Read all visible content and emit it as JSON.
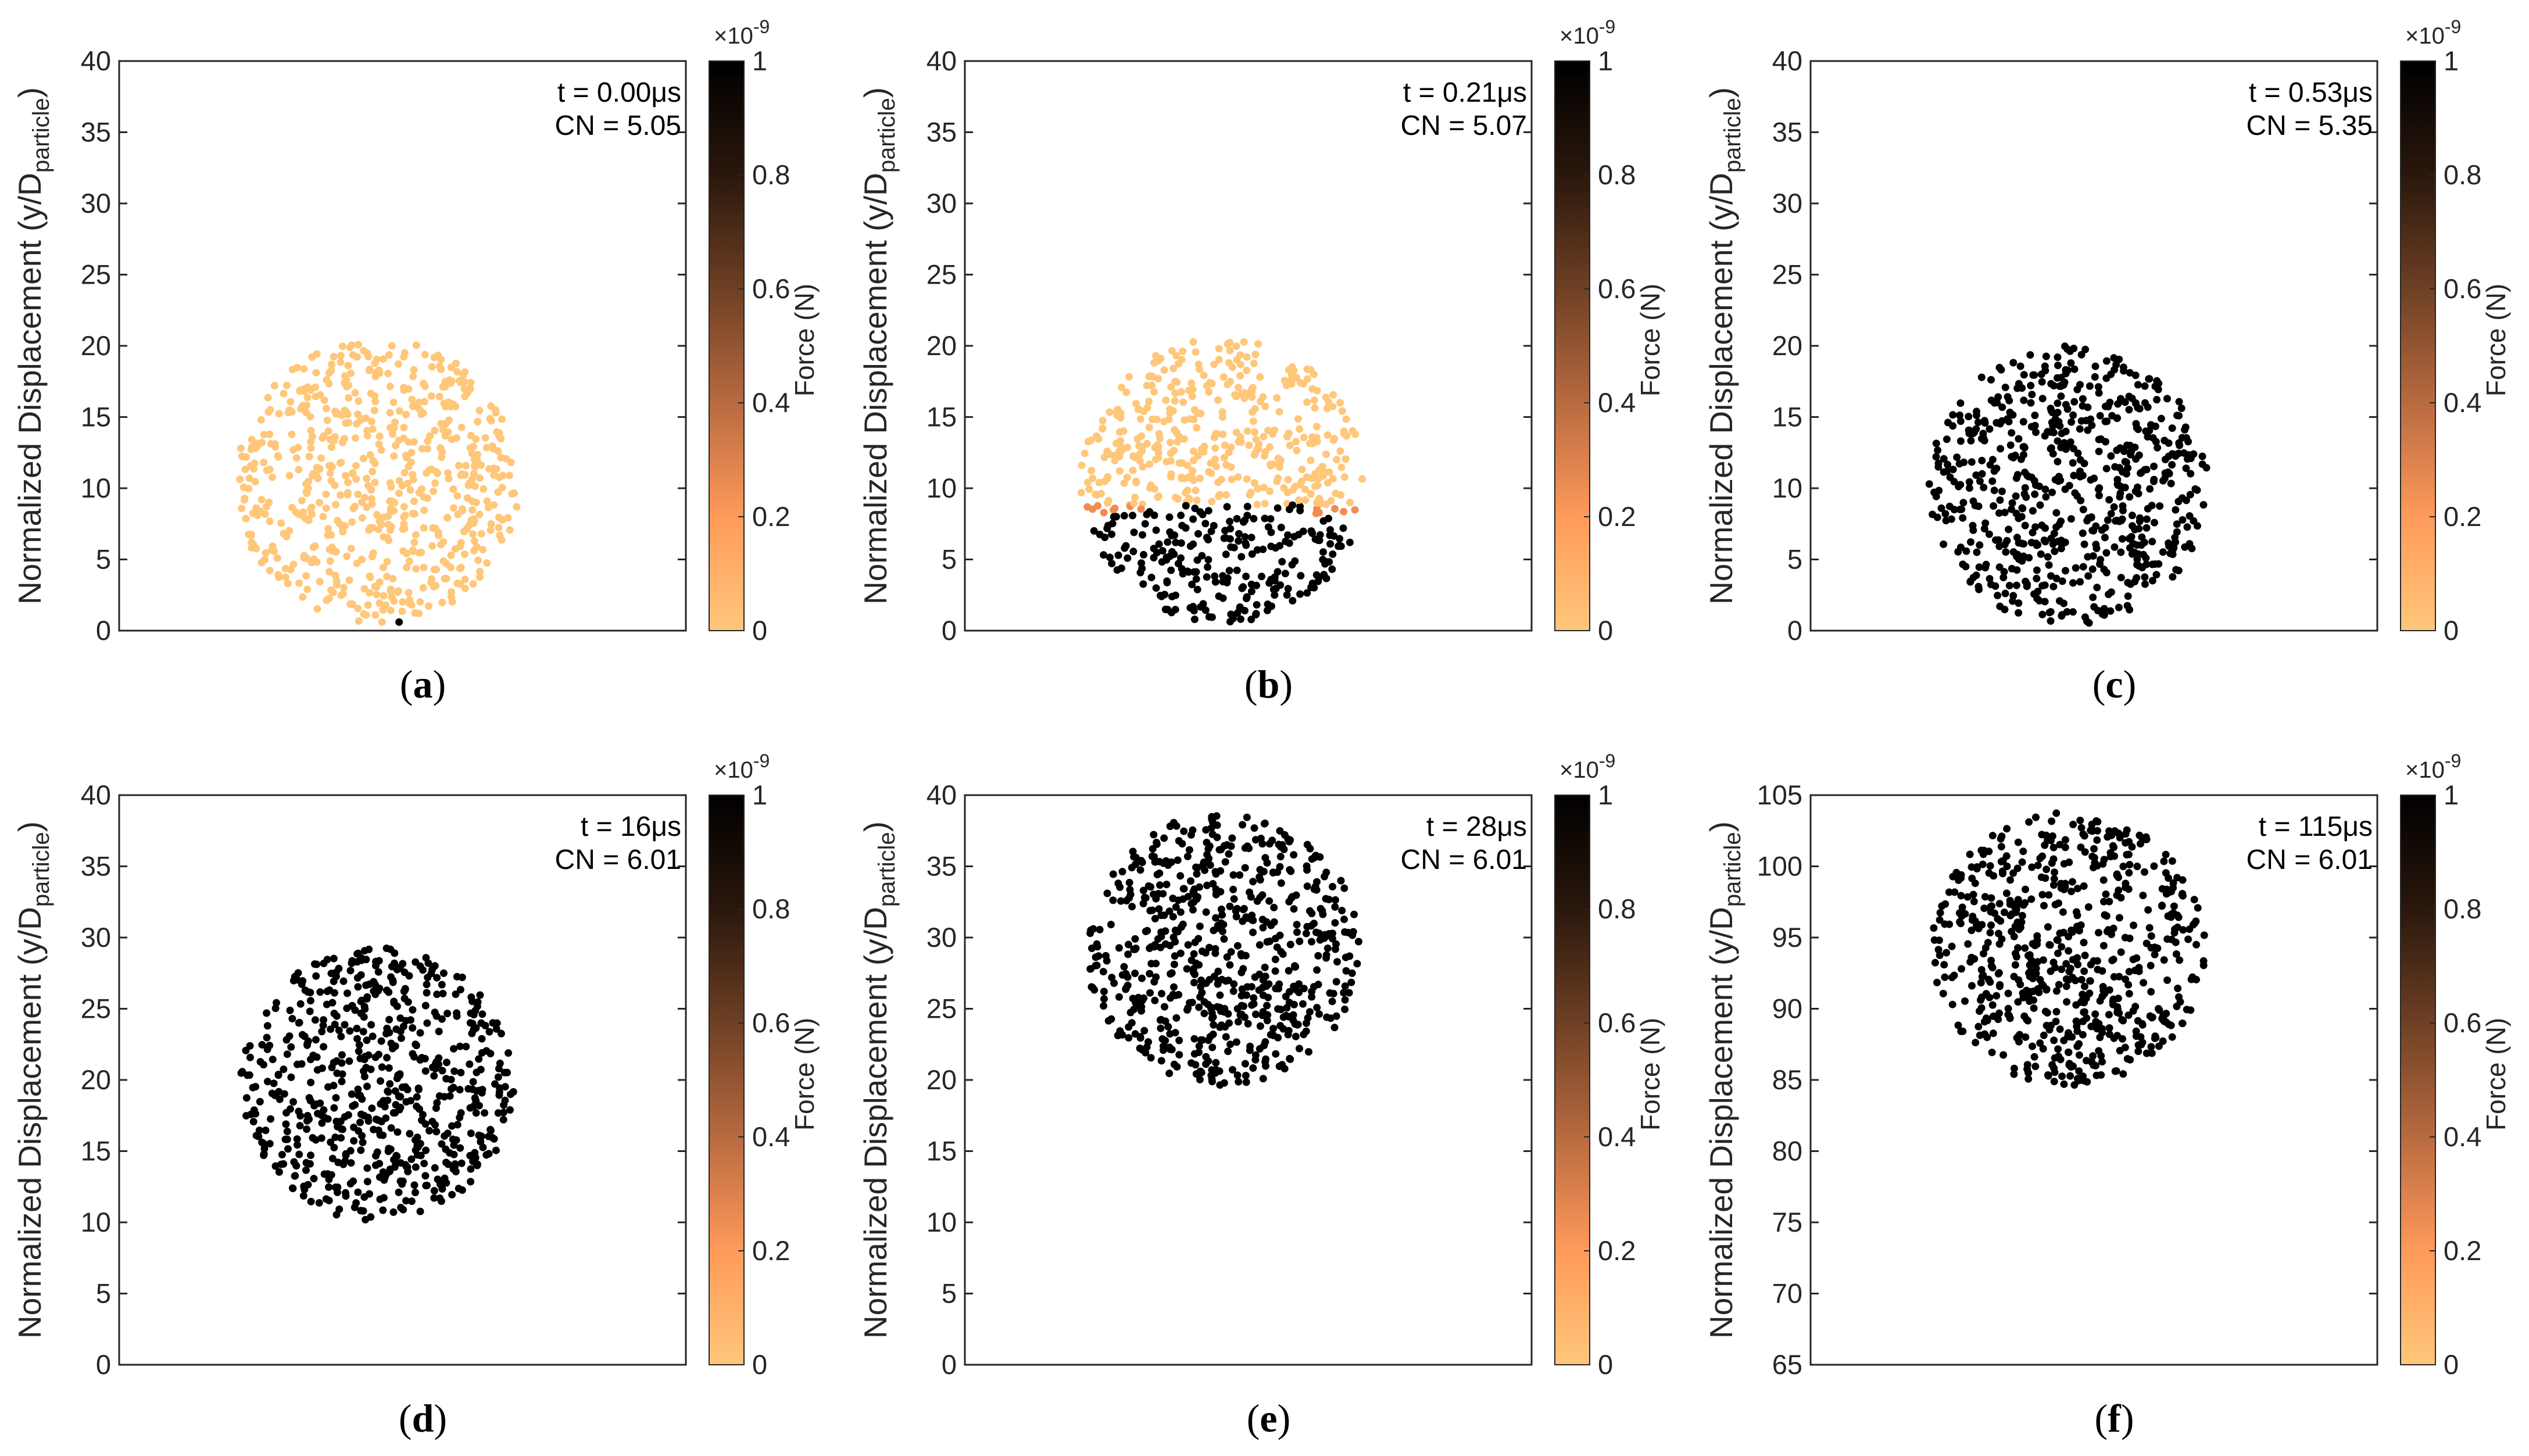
{
  "figure": {
    "colorbar": {
      "label": "Force (N)",
      "exponent_label": "×10",
      "exponent_power": "-9",
      "ticks": [
        "0",
        "0.2",
        "0.4",
        "0.6",
        "0.8",
        "1"
      ],
      "colors": [
        "#ffc77a",
        "#ff9a5a",
        "#b86a40",
        "#6e4024",
        "#2a170c",
        "#000000"
      ]
    },
    "y_axis_label": {
      "prefix": "Normalized Displacement (y/D",
      "subscript": "particle",
      "suffix": ")"
    },
    "point_colors": {
      "low_force": "#ffc77a",
      "high_force": "#000000",
      "medium_force": "#f08c52"
    }
  },
  "chart_data": [
    {
      "id": "a",
      "type": "scatter",
      "caption": "a",
      "annotation": {
        "line1": "t = 0.00μs",
        "line2": "CN = 5.05"
      },
      "ylim": [
        0,
        40
      ],
      "yticks": [
        "0",
        "5",
        "10",
        "15",
        "20",
        "25",
        "30",
        "35",
        "40"
      ],
      "cluster": {
        "center_y": 10.5,
        "radius": 10.0,
        "count": 640
      },
      "force_state": "unloaded",
      "contact_particle_y": 0.6
    },
    {
      "id": "b",
      "type": "scatter",
      "caption": "b",
      "annotation": {
        "line1": "t = 0.21μs",
        "line2": "CN = 5.07"
      },
      "ylim": [
        0,
        40
      ],
      "yticks": [
        "0",
        "5",
        "10",
        "15",
        "20",
        "25",
        "30",
        "35",
        "40"
      ],
      "cluster": {
        "center_y": 10.5,
        "radius": 10.0,
        "count": 640
      },
      "force_state": "partial",
      "loaded_front_y": 8.5
    },
    {
      "id": "c",
      "type": "scatter",
      "caption": "c",
      "annotation": {
        "line1": "t = 0.53μs",
        "line2": "CN = 5.35"
      },
      "ylim": [
        0,
        40
      ],
      "yticks": [
        "0",
        "5",
        "10",
        "15",
        "20",
        "25",
        "30",
        "35",
        "40"
      ],
      "cluster": {
        "center_y": 10.2,
        "radius": 9.8,
        "count": 640
      },
      "force_state": "loaded"
    },
    {
      "id": "d",
      "type": "scatter",
      "caption": "d",
      "annotation": {
        "line1": "t = 16μs",
        "line2": "CN = 6.01"
      },
      "ylim": [
        0,
        40
      ],
      "yticks": [
        "0",
        "5",
        "10",
        "15",
        "20",
        "25",
        "30",
        "35",
        "40"
      ],
      "cluster": {
        "center_y": 19.7,
        "radius": 9.6,
        "count": 640
      },
      "force_state": "loaded"
    },
    {
      "id": "e",
      "type": "scatter",
      "caption": "e",
      "annotation": {
        "line1": "t = 28μs",
        "line2": "CN = 6.01"
      },
      "ylim": [
        0,
        40
      ],
      "yticks": [
        "0",
        "5",
        "10",
        "15",
        "20",
        "25",
        "30",
        "35",
        "40"
      ],
      "cluster": {
        "center_y": 29.2,
        "radius": 9.6,
        "count": 640
      },
      "force_state": "loaded"
    },
    {
      "id": "f",
      "type": "scatter",
      "caption": "f",
      "annotation": {
        "line1": "t = 115μs",
        "line2": "CN = 6.01"
      },
      "ylim": [
        65,
        105
      ],
      "yticks": [
        "65",
        "70",
        "75",
        "80",
        "85",
        "90",
        "95",
        "100",
        "105"
      ],
      "cluster": {
        "center_y": 94.2,
        "radius": 9.6,
        "count": 640
      },
      "force_state": "loaded"
    }
  ]
}
